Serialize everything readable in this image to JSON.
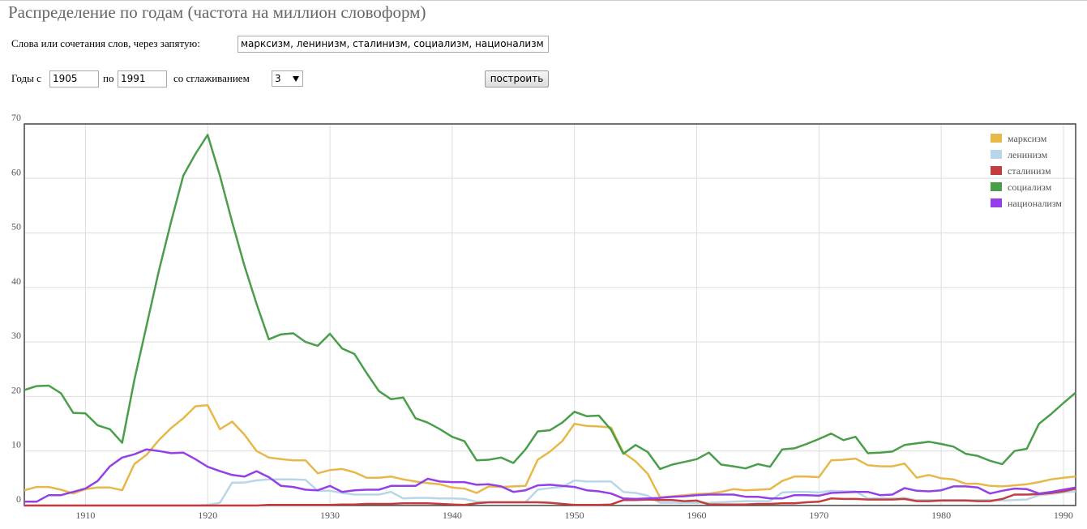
{
  "header": {
    "title": "Распределение по годам (частота на миллион словоформ)"
  },
  "form": {
    "words_label": "Слова или сочетания слов, через запятую:",
    "words_value": "марксизм, ленинизм, сталинизм, социализм, национализм",
    "from_label": "Годы с",
    "from_value": "1905",
    "to_label": "по",
    "to_value": "1991",
    "smoothing_label": "со сглаживанием",
    "smoothing_value": "3",
    "button": "построить"
  },
  "chart_data": {
    "type": "line",
    "x": [
      1905,
      1906,
      1907,
      1908,
      1909,
      1910,
      1911,
      1912,
      1913,
      1914,
      1915,
      1916,
      1917,
      1918,
      1919,
      1920,
      1921,
      1922,
      1923,
      1924,
      1925,
      1926,
      1927,
      1928,
      1929,
      1930,
      1931,
      1932,
      1933,
      1934,
      1935,
      1936,
      1937,
      1938,
      1939,
      1940,
      1941,
      1942,
      1943,
      1944,
      1945,
      1946,
      1947,
      1948,
      1949,
      1950,
      1951,
      1952,
      1953,
      1954,
      1955,
      1956,
      1957,
      1958,
      1959,
      1960,
      1961,
      1962,
      1963,
      1964,
      1965,
      1966,
      1967,
      1968,
      1969,
      1970,
      1971,
      1972,
      1973,
      1974,
      1975,
      1976,
      1977,
      1978,
      1979,
      1980,
      1981,
      1982,
      1983,
      1984,
      1985,
      1986,
      1987,
      1988,
      1989,
      1990,
      1991
    ],
    "series": [
      {
        "name": "марксизм",
        "color": "#e6b84a",
        "values": [
          2.8,
          3.4,
          3.4,
          2.9,
          2.2,
          3.0,
          3.3,
          3.3,
          2.8,
          7.6,
          9.3,
          12,
          14.2,
          16,
          18.2,
          18.4,
          14,
          15.4,
          13,
          10,
          8.8,
          8.5,
          8.3,
          8.3,
          5.9,
          6.5,
          6.7,
          6.1,
          5.1,
          5.1,
          5.3,
          4.8,
          4.4,
          4.1,
          3.9,
          3.3,
          3.1,
          2.3,
          3.5,
          3.4,
          3.5,
          3.6,
          8.4,
          9.9,
          11.8,
          15,
          14.6,
          14.5,
          14.3,
          9.7,
          8.1,
          5.8,
          1.5,
          1.7,
          1.9,
          2.1,
          2.2,
          2.5,
          3.0,
          2.8,
          2.9,
          3.0,
          4.5,
          5.3,
          5.3,
          5.2,
          8.3,
          8.4,
          8.6,
          7.4,
          7.2,
          7.2,
          7.7,
          5.1,
          5.6,
          5,
          4.8,
          4,
          4,
          3.6,
          3.5,
          3.7,
          3.9,
          4.3,
          4.8,
          5.1,
          5.3
        ]
      },
      {
        "name": "ленинизм",
        "color": "#b8d6ea",
        "values": [
          0,
          0,
          0,
          0,
          0,
          0,
          0,
          0,
          0,
          0,
          0,
          0,
          0,
          0,
          0,
          0.1,
          0.5,
          4.2,
          4.2,
          4.6,
          4.8,
          4.8,
          4.8,
          4.7,
          2.7,
          2.7,
          2.3,
          2.0,
          2.0,
          2.0,
          2.5,
          1.3,
          1.4,
          1.4,
          1.3,
          1.3,
          1.2,
          0.7,
          0.6,
          0.6,
          0.6,
          0.6,
          2.9,
          3.2,
          3.4,
          4.6,
          4.4,
          4.4,
          4.4,
          2.5,
          2.3,
          1.8,
          0.5,
          0.5,
          0.5,
          0.5,
          0.5,
          0.6,
          0.7,
          0.8,
          0.8,
          0.8,
          2.4,
          2.5,
          2.5,
          2.4,
          2.7,
          2.6,
          2.6,
          1.3,
          1.3,
          1.3,
          1.4,
          1.0,
          1.0,
          1.0,
          1.0,
          1.0,
          1.0,
          1.0,
          0.9,
          1.0,
          1.1,
          1.9,
          2.1,
          2.4,
          2.6
        ]
      },
      {
        "name": "сталинизм",
        "color": "#c43c3c",
        "values": [
          0,
          0,
          0,
          0,
          0,
          0,
          0,
          0,
          0,
          0,
          0,
          0,
          0,
          0,
          0,
          0,
          0,
          0,
          0,
          0,
          0.1,
          0.1,
          0.1,
          0.1,
          0.1,
          0.1,
          0.2,
          0.2,
          0.3,
          0.3,
          0.3,
          0.4,
          0.4,
          0.4,
          0.3,
          0.2,
          0.1,
          0.4,
          0.6,
          0.6,
          0.6,
          0.6,
          0.6,
          0.5,
          0.3,
          0.1,
          0.1,
          0.1,
          0.2,
          1.0,
          1.0,
          1.1,
          1.0,
          1.0,
          0.8,
          0.9,
          0.2,
          0.2,
          0.2,
          0.2,
          0.3,
          0.3,
          0.4,
          0.4,
          0.6,
          0.7,
          1.3,
          1.2,
          1.2,
          1.1,
          1.1,
          1.1,
          1.2,
          0.8,
          0.8,
          0.9,
          0.9,
          0.9,
          0.8,
          0.8,
          1.2,
          2.0,
          2.0,
          2.1,
          2.3,
          2.6,
          3.1
        ]
      },
      {
        "name": "социализм",
        "color": "#4a9e4a",
        "values": [
          21.2,
          21.9,
          22.0,
          20.6,
          17.0,
          16.9,
          14.7,
          14.0,
          11.5,
          23,
          33,
          43,
          52,
          60.5,
          64.5,
          68,
          60.5,
          52,
          44,
          37,
          30.5,
          31.4,
          31.6,
          30,
          29.3,
          31.5,
          28.8,
          27.8,
          24.3,
          21,
          19.5,
          19.8,
          16,
          15.2,
          14,
          12.6,
          11.8,
          8.3,
          8.4,
          8.8,
          7.8,
          10.3,
          13.6,
          13.8,
          15.2,
          17.2,
          16.4,
          16.5,
          13.9,
          9.5,
          11.1,
          9.8,
          6.7,
          7.5,
          8,
          8.5,
          9.7,
          7.5,
          7.2,
          6.8,
          7.6,
          7.1,
          10.3,
          10.5,
          11.3,
          12.2,
          13.2,
          12,
          12.6,
          9.6,
          9.7,
          9.9,
          11.1,
          11.4,
          11.7,
          11.3,
          10.8,
          9.5,
          9.1,
          8.2,
          7.6,
          10,
          10.4,
          15,
          16.8,
          18.8,
          20.7
        ]
      },
      {
        "name": "национализм",
        "color": "#9440e6",
        "values": [
          0.7,
          0.7,
          1.9,
          1.9,
          2.5,
          3.1,
          4.5,
          7.2,
          8.8,
          9.4,
          10.3,
          10.0,
          9.6,
          9.7,
          8.5,
          7.1,
          6.3,
          5.6,
          5.3,
          6.3,
          5.2,
          3.6,
          3.4,
          2.9,
          2.8,
          3.6,
          2.5,
          2.8,
          2.9,
          2.9,
          3.6,
          3.6,
          3.6,
          4.9,
          4.4,
          4.3,
          4.3,
          3.8,
          3.9,
          3.5,
          2.5,
          2.8,
          3.7,
          3.8,
          3.6,
          3.4,
          2.8,
          2.6,
          2.2,
          1.3,
          1.2,
          1.3,
          1.4,
          1.6,
          1.7,
          1.9,
          2.0,
          2.0,
          2.0,
          1.6,
          1.6,
          1.3,
          1.3,
          1.9,
          1.9,
          1.8,
          2.3,
          2.4,
          2.5,
          2.5,
          1.9,
          2.0,
          3.2,
          2.7,
          2.6,
          2.8,
          3.5,
          3.5,
          3.3,
          2.2,
          2.7,
          3.1,
          3.0,
          2.2,
          2.5,
          2.9,
          3.3
        ]
      }
    ],
    "xlim": [
      1905,
      1991
    ],
    "xticks": [
      1910,
      1920,
      1930,
      1940,
      1950,
      1960,
      1970,
      1980,
      1990
    ],
    "ylim": [
      0,
      70
    ],
    "yticks": [
      0,
      10,
      20,
      30,
      40,
      50,
      60,
      70
    ],
    "grid": true,
    "legend": "top-right"
  }
}
